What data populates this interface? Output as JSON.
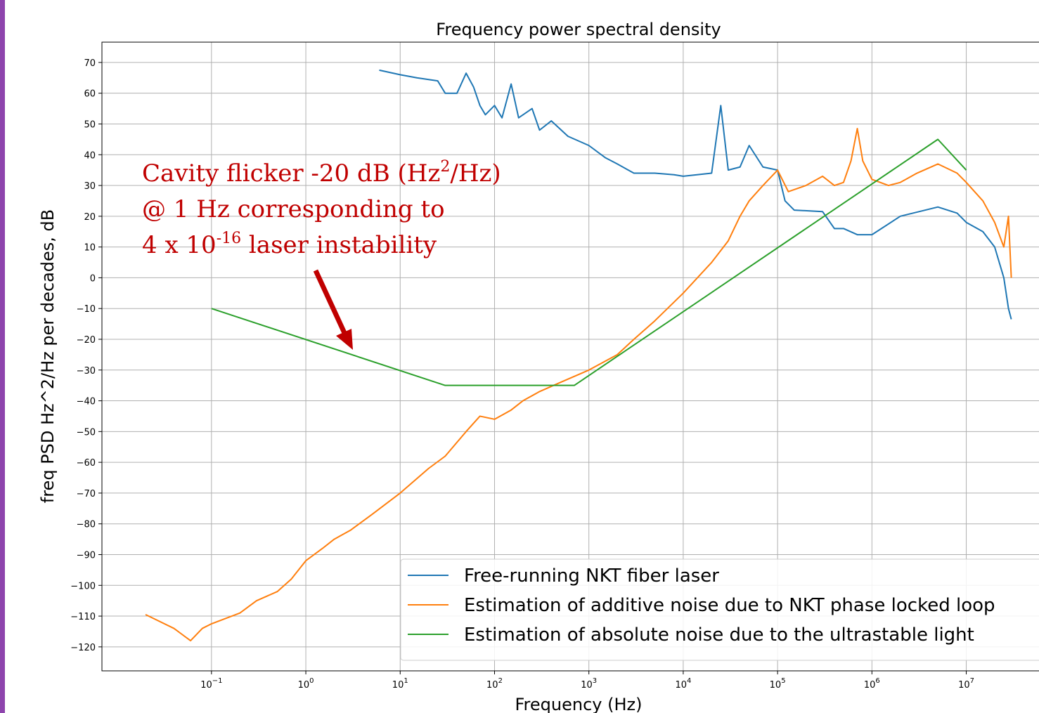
{
  "chart_data": {
    "type": "line",
    "title": "Frequency power spectral density",
    "xlabel": "Frequency (Hz)",
    "ylabel": "freq PSD Hz^2/Hz per decades, dB",
    "xscale": "log",
    "xlim": [
      0.0069,
      59000000
    ],
    "ylim": [
      -127.8,
      76.6
    ],
    "xticks": [
      {
        "value": 0.1,
        "label": "10",
        "exponent": "−1"
      },
      {
        "value": 1,
        "label": "10",
        "exponent": "0"
      },
      {
        "value": 10,
        "label": "10",
        "exponent": "1"
      },
      {
        "value": 100,
        "label": "10",
        "exponent": "2"
      },
      {
        "value": 1000,
        "label": "10",
        "exponent": "3"
      },
      {
        "value": 10000,
        "label": "10",
        "exponent": "4"
      },
      {
        "value": 100000,
        "label": "10",
        "exponent": "5"
      },
      {
        "value": 1000000,
        "label": "10",
        "exponent": "6"
      },
      {
        "value": 10000000,
        "label": "10",
        "exponent": "7"
      }
    ],
    "yticks": [
      {
        "value": -120,
        "label": "−120"
      },
      {
        "value": -110,
        "label": "−110"
      },
      {
        "value": -100,
        "label": "−100"
      },
      {
        "value": -90,
        "label": "−90"
      },
      {
        "value": -80,
        "label": "−80"
      },
      {
        "value": -70,
        "label": "−70"
      },
      {
        "value": -60,
        "label": "−60"
      },
      {
        "value": -50,
        "label": "−50"
      },
      {
        "value": -40,
        "label": "−40"
      },
      {
        "value": -30,
        "label": "−30"
      },
      {
        "value": -20,
        "label": "−20"
      },
      {
        "value": -10,
        "label": "−10"
      },
      0,
      10,
      20,
      30,
      40,
      50,
      60,
      70
    ],
    "grid": true,
    "legend": "lower right",
    "series": [
      {
        "name": "Free-running NKT fiber laser",
        "color": "#1f77b4",
        "x": [
          6,
          10,
          15,
          25,
          30,
          40,
          50,
          60,
          70,
          80,
          100,
          120,
          150,
          180,
          250,
          300,
          400,
          600,
          1000,
          1500,
          2000,
          3000,
          5000,
          8000,
          10000,
          20000,
          25000,
          30000,
          40000,
          50000,
          70000,
          100000,
          120000,
          150000,
          300000,
          400000,
          500000,
          700000,
          1000000,
          2000000,
          5000000,
          8000000,
          10000000,
          15000000,
          20000000,
          25000000,
          28000000,
          30000000
        ],
        "values": [
          67.5,
          66,
          65,
          64,
          60,
          60,
          66.5,
          62,
          56,
          53,
          56,
          52,
          63,
          52,
          55,
          48,
          51,
          46,
          43,
          39,
          37,
          34,
          34,
          33.5,
          33,
          34,
          56,
          35,
          36,
          43,
          36,
          35,
          25,
          22,
          21.5,
          16,
          16,
          14,
          14,
          20,
          23,
          21,
          18,
          15,
          10,
          0,
          -10,
          -13.5
        ]
      },
      {
        "name": "Estimation of additive noise due to NKT phase locked loop",
        "color": "#ff7f0e",
        "x": [
          0.02,
          0.04,
          0.06,
          0.08,
          0.1,
          0.2,
          0.3,
          0.5,
          0.7,
          1,
          1.5,
          2,
          3,
          5,
          10,
          20,
          30,
          50,
          70,
          100,
          150,
          200,
          300,
          500,
          1000,
          2000,
          3000,
          5000,
          10000,
          20000,
          30000,
          40000,
          50000,
          70000,
          100000,
          130000,
          200000,
          300000,
          400000,
          500000,
          600000,
          700000,
          800000,
          1000000,
          1500000,
          2000000,
          3000000,
          5000000,
          8000000,
          10000000,
          15000000,
          20000000,
          25000000,
          28000000,
          30000000
        ],
        "values": [
          -109.5,
          -114,
          -118,
          -114,
          -112.5,
          -109,
          -105,
          -102,
          -98,
          -92,
          -88,
          -85,
          -82,
          -77,
          -70,
          -62,
          -58,
          -50,
          -45,
          -46,
          -43,
          -40,
          -37,
          -34,
          -30,
          -25,
          -20,
          -14,
          -5,
          5,
          12,
          20,
          25,
          30,
          35,
          28,
          30,
          33,
          30,
          31,
          38,
          48.5,
          38,
          32,
          30,
          31,
          34,
          37,
          34,
          31,
          25,
          18,
          10,
          20,
          0
        ]
      },
      {
        "name": "Estimation of absolute noise due to the ultrastable light",
        "color": "#2ca02c",
        "x": [
          0.1,
          30,
          700,
          5000000,
          10000000
        ],
        "values": [
          -10,
          -35,
          -35,
          45,
          35
        ]
      }
    ],
    "annotation": {
      "color": "#c00000",
      "lines": [
        [
          "Cavity flicker -20 dB (Hz",
          "2",
          "/Hz)"
        ],
        [
          "@ 1 Hz corresponding to"
        ],
        [
          "4 x 10",
          "-16",
          " laser instability"
        ]
      ]
    }
  }
}
